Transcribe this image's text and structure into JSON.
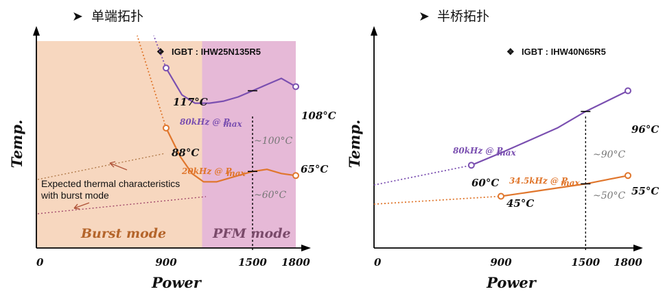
{
  "chart_data": [
    {
      "type": "line",
      "title": "单端拓扑",
      "igbt_label": "IGBT : IHW25N135R5",
      "bullet": "❖",
      "xlabel": "Power",
      "ylabel": "Temp.",
      "x_ticks": [
        {
          "value": 0,
          "label": "0"
        },
        {
          "value": 900,
          "label": "900"
        },
        {
          "value": 1500,
          "label": "1500"
        },
        {
          "value": 1800,
          "label": "1800"
        }
      ],
      "xlim": [
        0,
        1800
      ],
      "ylim": [
        30,
        130
      ],
      "regions": [
        {
          "name": "Burst mode",
          "from": 0,
          "to": 1150,
          "color": "#f7d7bf"
        },
        {
          "name": "PFM mode",
          "from": 1150,
          "to": 1800,
          "color": "#e6b9d7"
        }
      ],
      "series": [
        {
          "name": "80kHz @ Pmax",
          "freq": "80kHz @ P",
          "sub": "max",
          "color": "#7a4fb0",
          "x": [
            900,
            1010,
            1100,
            1200,
            1300,
            1400,
            1500,
            1600,
            1700,
            1800
          ],
          "y": [
            117,
            104,
            100,
            100,
            101,
            103,
            106,
            109,
            112,
            108
          ]
        },
        {
          "name": "20kHz @ Pmax",
          "freq": "20kHz @ P",
          "sub": "max",
          "color": "#e0762c",
          "x": [
            900,
            1000,
            1080,
            1160,
            1250,
            1350,
            1450,
            1500,
            1600,
            1700,
            1800
          ],
          "y": [
            88,
            74,
            66,
            62,
            62,
            64,
            66,
            67,
            68,
            66,
            65
          ]
        }
      ],
      "points": [
        {
          "label": "117°C",
          "series": 0,
          "x": 900,
          "y": 117
        },
        {
          "label": "108°C",
          "series": 0,
          "x": 1800,
          "y": 108
        },
        {
          "label": "88°C",
          "series": 1,
          "x": 900,
          "y": 88
        },
        {
          "label": "65°C",
          "series": 1,
          "x": 1800,
          "y": 65
        }
      ],
      "marks_at_1500": [
        "~100°C",
        "~60°C"
      ],
      "annotation": [
        "Expected thermal characteristics",
        "with burst mode"
      ]
    },
    {
      "type": "line",
      "title": "半桥拓扑",
      "igbt_label": "IGBT : IHW40N65R5",
      "bullet": "❖",
      "xlabel": "Power",
      "ylabel": "Temp.",
      "x_ticks": [
        {
          "value": 0,
          "label": "0"
        },
        {
          "value": 900,
          "label": "900"
        },
        {
          "value": 1500,
          "label": "1500"
        },
        {
          "value": 1800,
          "label": "1800"
        }
      ],
      "xlim": [
        0,
        1800
      ],
      "ylim": [
        20,
        120
      ],
      "series": [
        {
          "name": "80kHz @ Pmax",
          "freq": "80kHz @ P",
          "sub": "max",
          "color": "#7a4fb0",
          "x": [
            690,
            900,
            1100,
            1300,
            1500,
            1650,
            1800
          ],
          "y": [
            60,
            66,
            72,
            78,
            86,
            91,
            96
          ]
        },
        {
          "name": "34.5kHz @ Pmax",
          "freq": "34.5kHz @ P",
          "sub": "max",
          "color": "#e0762c",
          "x": [
            900,
            1100,
            1300,
            1500,
            1650,
            1800
          ],
          "y": [
            45,
            47,
            49,
            51,
            53,
            55
          ]
        }
      ],
      "points": [
        {
          "label": "60°C",
          "series": 0,
          "x": 690,
          "y": 60
        },
        {
          "label": "96°C",
          "series": 0,
          "x": 1800,
          "y": 96
        },
        {
          "label": "45°C",
          "series": 1,
          "x": 900,
          "y": 45
        },
        {
          "label": "55°C",
          "series": 1,
          "x": 1800,
          "y": 55
        }
      ],
      "marks_at_1500": [
        "~90°C",
        "~50°C"
      ]
    }
  ]
}
